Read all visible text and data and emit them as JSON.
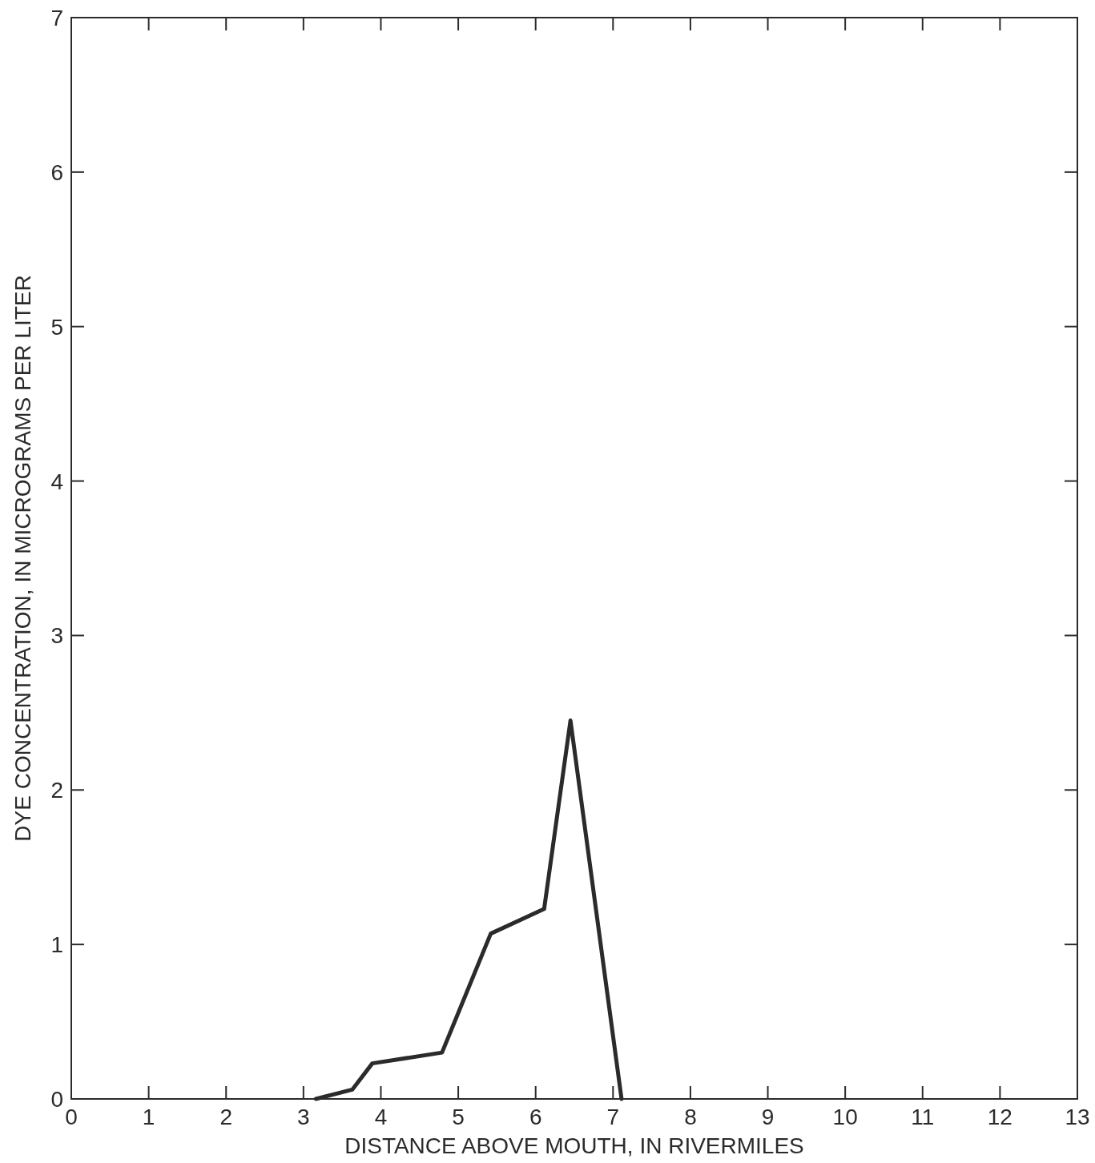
{
  "chart_data": {
    "type": "line",
    "xlabel": "DISTANCE ABOVE MOUTH, IN RIVERMILES",
    "ylabel": "DYE CONCENTRATION, IN MICROGRAMS PER LITER",
    "x": [
      3.16,
      3.63,
      3.89,
      4.79,
      5.42,
      6.11,
      6.45,
      7.11
    ],
    "series": [
      {
        "color": "#2b2b2b",
        "values": [
          0,
          0.06,
          0.23,
          0.3,
          1.07,
          1.23,
          2.45,
          0
        ]
      }
    ],
    "xlim": [
      0,
      13
    ],
    "xticks": [
      0,
      1,
      2,
      3,
      4,
      5,
      6,
      7,
      8,
      9,
      10,
      11,
      12,
      13
    ],
    "ylim": [
      0,
      7
    ],
    "yticks": [
      0,
      1,
      2,
      3,
      4,
      5,
      6,
      7
    ],
    "grid": false,
    "marker": "none",
    "line_style": "solid"
  }
}
